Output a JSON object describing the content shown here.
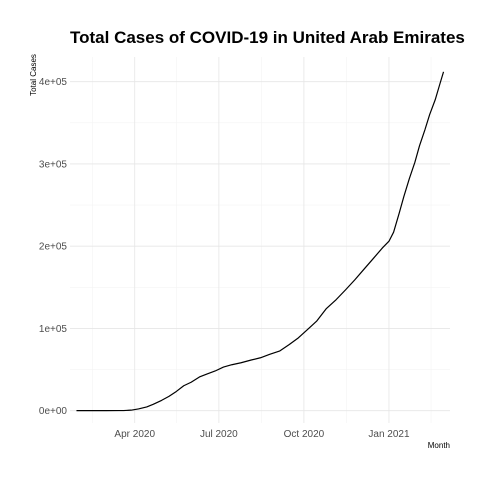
{
  "chart_data": {
    "type": "line",
    "title": "Total Cases of COVID-19 in United Arab Emirates",
    "xlabel": "Month",
    "ylabel": "Total Cases",
    "x_ticks": [
      "Apr 2020",
      "Jul 2020",
      "Oct 2020",
      "Jan 2021"
    ],
    "x_tick_dates": [
      "2020-04-01",
      "2020-07-01",
      "2020-10-01",
      "2021-01-01"
    ],
    "y_ticks": [
      0,
      100000,
      200000,
      300000,
      400000
    ],
    "y_tick_labels": [
      "0e+00",
      "1e+05",
      "2e+05",
      "3e+05",
      "4e+05"
    ],
    "xlim": [
      "2020-01-22",
      "2021-03-08"
    ],
    "ylim": [
      -15000,
      430000
    ],
    "grid": true,
    "series": [
      {
        "x": [
          "2020-01-29",
          "2020-02-15",
          "2020-03-01",
          "2020-03-15",
          "2020-03-20",
          "2020-03-28",
          "2020-04-05",
          "2020-04-14",
          "2020-04-21",
          "2020-04-30",
          "2020-05-08",
          "2020-05-16",
          "2020-05-24",
          "2020-06-01",
          "2020-06-10",
          "2020-06-18",
          "2020-06-27",
          "2020-07-06",
          "2020-07-15",
          "2020-07-25",
          "2020-08-05",
          "2020-08-15",
          "2020-08-25",
          "2020-09-05",
          "2020-09-15",
          "2020-09-25",
          "2020-10-05",
          "2020-10-15",
          "2020-10-25",
          "2020-11-05",
          "2020-11-15",
          "2020-11-25",
          "2020-12-05",
          "2020-12-15",
          "2020-12-25",
          "2021-01-01",
          "2021-01-06",
          "2021-01-12",
          "2021-01-17",
          "2021-01-23",
          "2021-01-29",
          "2021-02-03",
          "2021-02-09",
          "2021-02-14",
          "2021-02-20",
          "2021-02-25",
          "2021-03-01"
        ],
        "y": [
          4,
          9,
          21,
          98,
          140,
          611,
          2076,
          4521,
          7755,
          12481,
          17417,
          23358,
          30307,
          34557,
          40986,
          44533,
          48246,
          53045,
          55848,
          58249,
          61606,
          64312,
          68511,
          72654,
          80266,
          88532,
          98801,
          109142,
          123764,
          135141,
          146877,
          158996,
          172000,
          184949,
          198000,
          206000,
          217000,
          240000,
          260000,
          282000,
          302000,
          322000,
          342000,
          360000,
          378000,
          397000,
          412000
        ]
      }
    ]
  }
}
